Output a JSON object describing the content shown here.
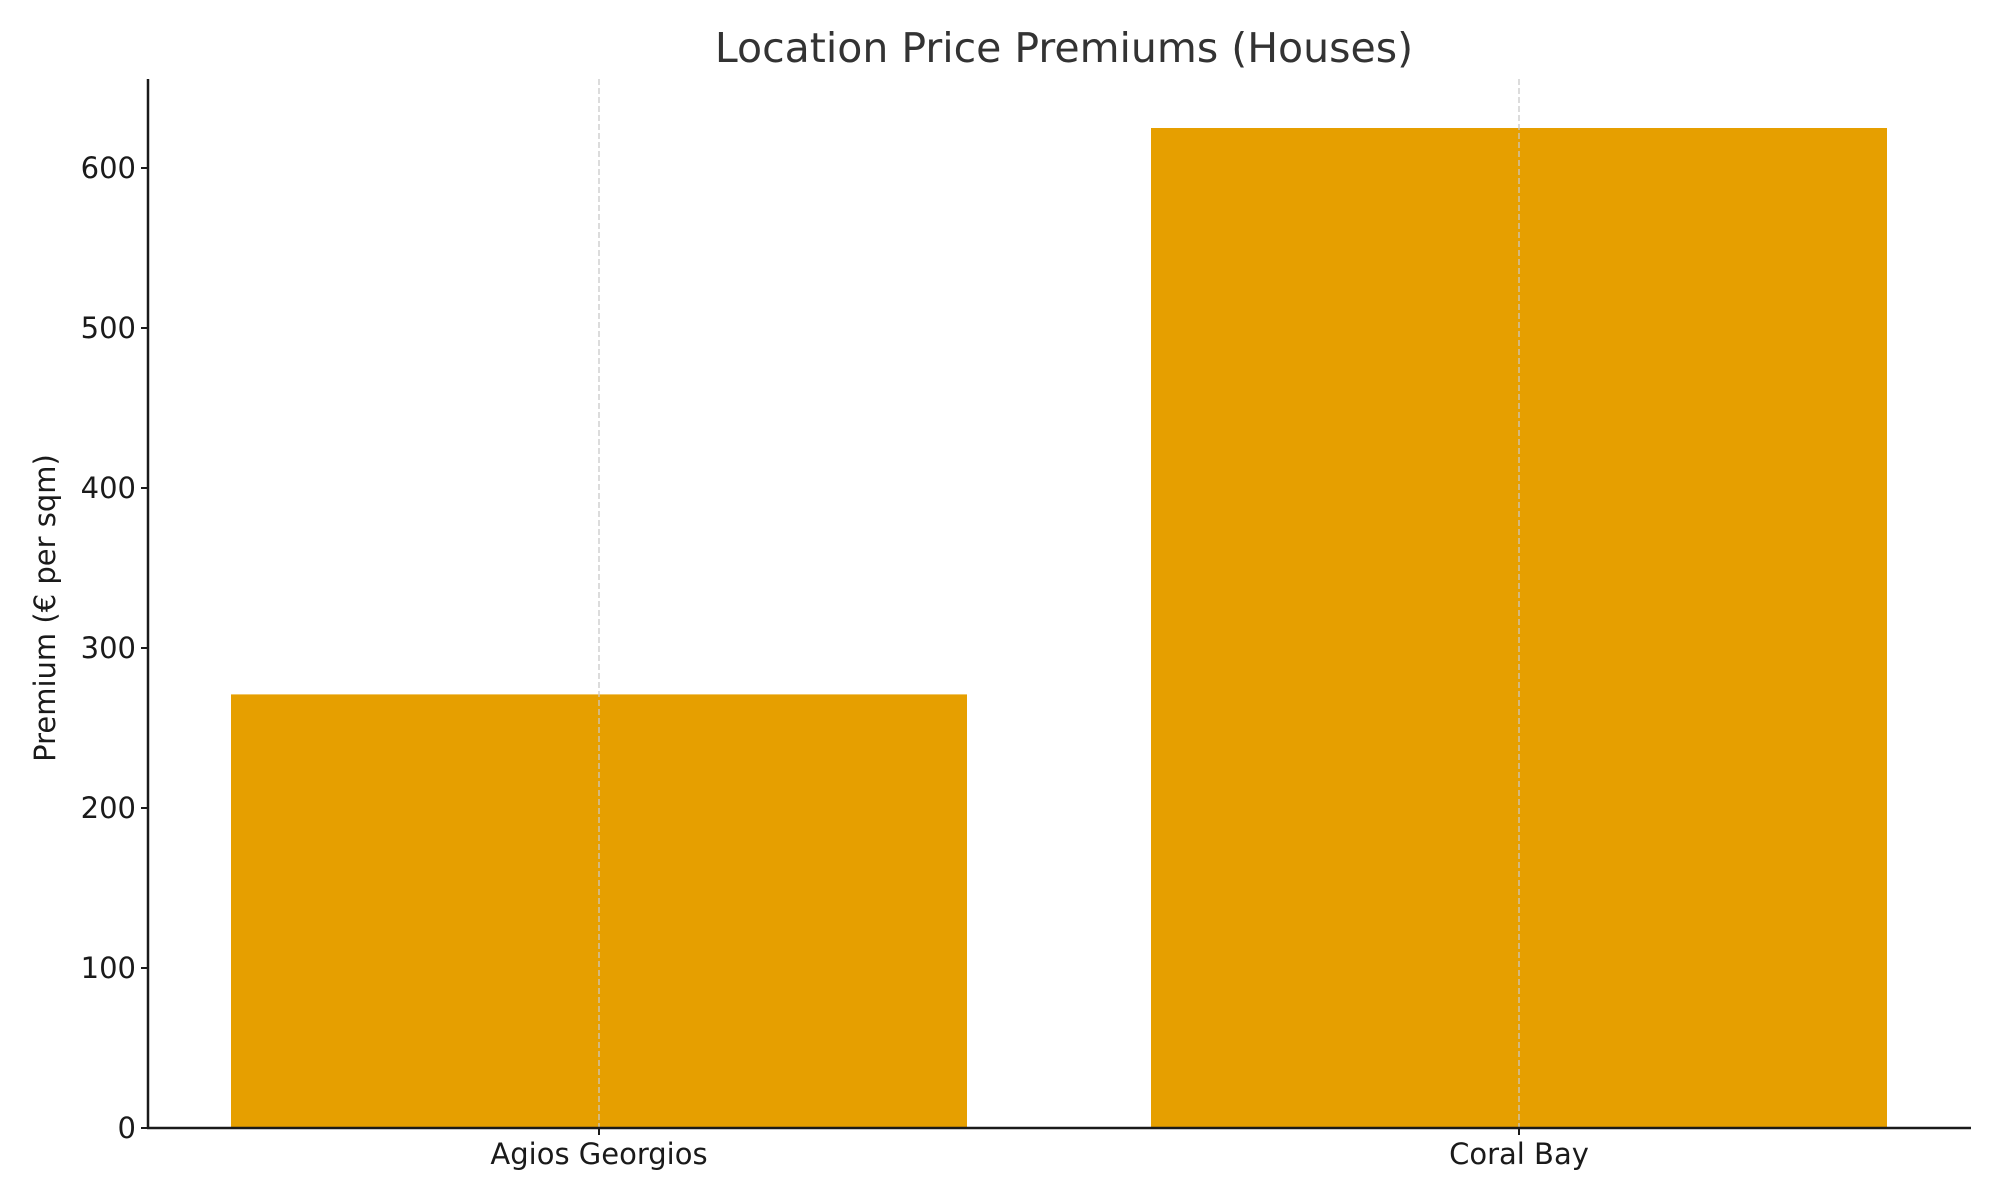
{
  "chart_data": {
    "type": "bar",
    "title": "Location Price Premiums (Houses)",
    "xlabel": "",
    "ylabel": "Premium (€ per sqm)",
    "categories": [
      "Agios Georgios",
      "Coral Bay"
    ],
    "values": [
      271,
      625
    ],
    "ylim": [
      0,
      656
    ],
    "yticks": [
      0,
      100,
      200,
      300,
      400,
      500,
      600
    ],
    "grid": {
      "x": true,
      "y": false,
      "style": "dashed"
    },
    "legend": null,
    "colors": {
      "bar": "#E69F00",
      "grid": "#c8c8c8",
      "axis": "#1a1a1a",
      "title": "#333333"
    }
  }
}
